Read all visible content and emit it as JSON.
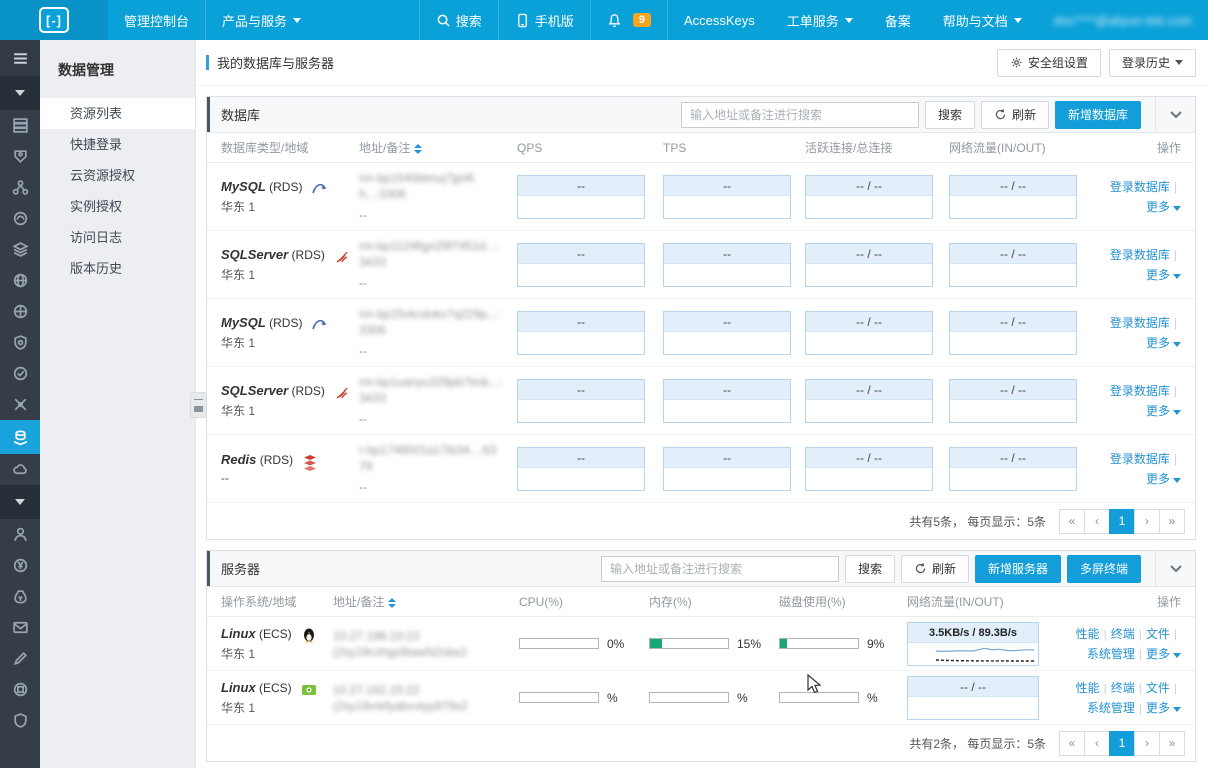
{
  "colors": {
    "accent": "#0aa0d8",
    "link": "#2592d2",
    "button_blue": "#149ed9",
    "badge_orange": "#f5a623",
    "bar_green": "#18a878"
  },
  "topbar": {
    "logo_glyph": "[-]",
    "console_label": "管理控制台",
    "products_label": "产品与服务",
    "search_label": "搜索",
    "mobile_label": "手机版",
    "notification_count": "9",
    "accesskeys_label": "AccessKeys",
    "tickets_label": "工单服务",
    "beian_label": "备案",
    "help_label": "帮助与文档",
    "user_account_masked": "doc****@aliyun-tek.com"
  },
  "sidebar": {
    "menu_title": "数据管理",
    "items": [
      {
        "label": "资源列表",
        "active": true
      },
      {
        "label": "快捷登录",
        "active": false
      },
      {
        "label": "云资源授权",
        "active": false
      },
      {
        "label": "实例授权",
        "active": false
      },
      {
        "label": "访问日志",
        "active": false
      },
      {
        "label": "版本历史",
        "active": false
      }
    ]
  },
  "page": {
    "title": "我的数据库与服务器",
    "security_group_btn": "安全组设置",
    "login_history_btn": "登录历史"
  },
  "db_panel": {
    "title": "数据库",
    "search_placeholder": "输入地址或备注进行搜索",
    "search_btn": "搜索",
    "refresh_btn": "刷新",
    "add_btn": "新增数据库",
    "columns": {
      "c1": "数据库类型/地域",
      "c2": "地址/备注",
      "c3": "QPS",
      "c4": "TPS",
      "c5": "活跃连接/总连接",
      "c6": "网络流量(IN/OUT)",
      "c7": "操作"
    },
    "action_login": "登录数据库",
    "action_more": "更多",
    "rows": [
      {
        "type": "MySQL",
        "engine": "(RDS)",
        "region": "华东 1",
        "addr1": "rm-bp1545blmuj7jpi4l.",
        "addr2": "h...:3306",
        "note": "--",
        "qps": "--",
        "tps": "--",
        "conn": "-- / --",
        "net": "-- / --"
      },
      {
        "type": "SQLServer",
        "engine": "(RDS)",
        "region": "华东 1",
        "addr1": "rm-bp1124fign29f7451d...:",
        "addr2": "3433",
        "note": "--",
        "qps": "--",
        "tps": "--",
        "conn": "-- / --",
        "net": "-- / --"
      },
      {
        "type": "MySQL",
        "engine": "(RDS)",
        "region": "华东 1",
        "addr1": "rm-bp15vkcdokv7q229p...:",
        "addr2": "3306",
        "note": "--",
        "qps": "--",
        "tps": "--",
        "conn": "-- / --",
        "net": "-- / --"
      },
      {
        "type": "SQLServer",
        "engine": "(RDS)",
        "region": "华东 1",
        "addr1": "rm-bp1uanyu329pb7tmk...:",
        "addr2": "3433",
        "note": "--",
        "qps": "--",
        "tps": "--",
        "conn": "-- / --",
        "net": "-- / --"
      },
      {
        "type": "Redis",
        "engine": "(RDS)",
        "region": "--",
        "addr1": "r-bp1746501a17ib34...:63",
        "addr2": "79",
        "note": "--",
        "qps": "--",
        "tps": "--",
        "conn": "-- / --",
        "net": "-- / --"
      }
    ],
    "pagination": {
      "summary": "共有5条， 每页显示：5条",
      "first": "«",
      "prev": "‹",
      "page": "1",
      "next": "›",
      "last": "»"
    }
  },
  "server_panel": {
    "title": "服务器",
    "search_placeholder": "输入地址或备注进行搜索",
    "search_btn": "搜索",
    "refresh_btn": "刷新",
    "add_btn": "新增服务器",
    "multi_btn": "多屏终端",
    "columns": {
      "c1": "操作系统/地域",
      "c2": "地址/备注",
      "c3": "CPU(%)",
      "c4": "内存(%)",
      "c5": "磁盘使用(%)",
      "c6": "网络流量(IN/OUT)",
      "c7": "操作"
    },
    "action_perf": "性能",
    "action_term": "终端",
    "action_file": "文件",
    "action_sys": "系统管理",
    "action_more": "更多",
    "rows": [
      {
        "os": "Linux",
        "engine": "(ECS)",
        "region": "华东 1",
        "addr1": "10.27.198.10:22",
        "addr2": "(2sy19czhgz8taw5i2sbs2",
        "cpu": "0%",
        "cpu_fill": "0",
        "mem": "15%",
        "mem_fill": "15",
        "disk": "9%",
        "disk_fill": "9",
        "net": "3.5KB/s / 89.3B/s",
        "has_chart": true
      },
      {
        "os": "Linux",
        "engine": "(ECS)",
        "region": "华东 1",
        "addr1": "10.27.162.15:22",
        "addr2": "(2sy19vrkfyabvvtyy879s2",
        "cpu": "%",
        "cpu_fill": "0",
        "mem": "%",
        "mem_fill": "0",
        "disk": "%",
        "disk_fill": "0",
        "net": "-- / --",
        "has_chart": false
      }
    ],
    "pagination": {
      "summary": "共有2条， 每页显示：5条",
      "first": "«",
      "prev": "‹",
      "page": "1",
      "next": "›",
      "last": "»"
    }
  }
}
